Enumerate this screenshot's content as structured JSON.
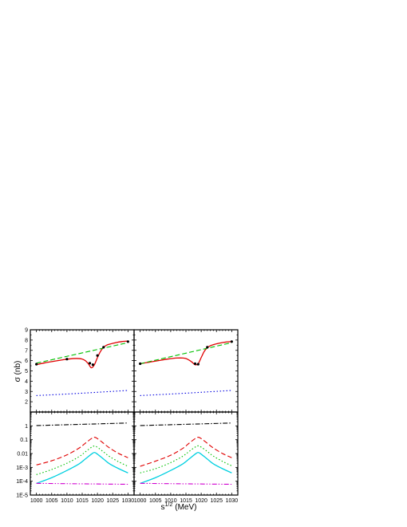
{
  "chart_data": [
    {
      "type": "line",
      "panel": "top-left",
      "ylabel": "σ (nb)",
      "ylim": [
        1,
        9
      ],
      "yticks": [
        2,
        3,
        4,
        5,
        6,
        7,
        8,
        9
      ],
      "xlim": [
        998,
        1032
      ],
      "series": [
        {
          "style": "solid",
          "color": "#e00000",
          "x": [
            1000,
            1003,
            1006,
            1009,
            1012,
            1014,
            1015,
            1016,
            1017,
            1018,
            1019,
            1020,
            1021,
            1022,
            1023,
            1024,
            1026,
            1028,
            1030
          ],
          "y": [
            5.6,
            5.8,
            5.95,
            6.1,
            6.2,
            6.2,
            6.15,
            6.0,
            5.7,
            5.3,
            5.6,
            6.3,
            6.9,
            7.3,
            7.5,
            7.6,
            7.75,
            7.85,
            7.9
          ]
        },
        {
          "style": "dashed",
          "color": "#00c000",
          "x": [
            1000,
            1030
          ],
          "y": [
            5.75,
            7.75
          ]
        },
        {
          "style": "dotted",
          "color": "#0000e0",
          "x": [
            1000,
            1010,
            1020,
            1030
          ],
          "y": [
            2.6,
            2.75,
            2.92,
            3.1
          ]
        },
        {
          "style": "points",
          "color": "#000000",
          "x": [
            1000,
            1010,
            1017.5,
            1018.5,
            1020,
            1022,
            1030
          ],
          "y": [
            5.65,
            6.15,
            5.75,
            5.6,
            6.5,
            7.3,
            7.85
          ]
        }
      ]
    },
    {
      "type": "line",
      "panel": "top-right",
      "ylim": [
        1,
        9
      ],
      "xlim": [
        998,
        1032
      ],
      "series": [
        {
          "style": "solid",
          "color": "#e00000",
          "x": [
            1000,
            1003,
            1006,
            1009,
            1012,
            1014,
            1015,
            1016,
            1017,
            1018,
            1019,
            1020,
            1021,
            1022,
            1023,
            1024,
            1026,
            1028,
            1030
          ],
          "y": [
            5.7,
            5.85,
            6.0,
            6.15,
            6.25,
            6.25,
            6.2,
            6.05,
            5.85,
            5.6,
            5.7,
            6.3,
            6.9,
            7.25,
            7.45,
            7.55,
            7.7,
            7.8,
            7.85
          ]
        },
        {
          "style": "dashed",
          "color": "#00c000",
          "x": [
            1000,
            1030
          ],
          "y": [
            5.7,
            7.75
          ]
        },
        {
          "style": "dotted",
          "color": "#0000e0",
          "x": [
            1000,
            1010,
            1020,
            1030
          ],
          "y": [
            2.6,
            2.75,
            2.92,
            3.1
          ]
        },
        {
          "style": "points",
          "color": "#000000",
          "x": [
            1000,
            1018,
            1019,
            1022,
            1030
          ],
          "y": [
            5.7,
            5.7,
            5.65,
            7.3,
            7.85
          ]
        }
      ]
    },
    {
      "type": "line",
      "panel": "bottom-left",
      "yscale": "log",
      "ylim": [
        1e-05,
        10
      ],
      "ytick_labels": [
        "1E-5",
        "1E-4",
        "1E-3",
        "0.01",
        "0.1",
        "1"
      ],
      "yticks": [
        1e-05,
        0.0001,
        0.001,
        0.01,
        0.1,
        1
      ],
      "xlim": [
        998,
        1032
      ],
      "xticks": [
        1000,
        1005,
        1010,
        1015,
        1020,
        1025,
        1030
      ],
      "series": [
        {
          "style": "dashdot",
          "color": "#000000",
          "x": [
            1000,
            1030
          ],
          "y": [
            1.05,
            1.6
          ]
        },
        {
          "style": "dashed",
          "color": "#e00000",
          "x": [
            1000,
            1005,
            1010,
            1014,
            1016,
            1018,
            1019,
            1020,
            1022,
            1024,
            1027,
            1030
          ],
          "y": [
            0.0015,
            0.003,
            0.008,
            0.025,
            0.055,
            0.12,
            0.15,
            0.12,
            0.055,
            0.025,
            0.01,
            0.005
          ]
        },
        {
          "style": "dotted",
          "color": "#00c000",
          "x": [
            1000,
            1005,
            1010,
            1014,
            1016,
            1018,
            1019,
            1020,
            1022,
            1024,
            1027,
            1030
          ],
          "y": [
            0.0003,
            0.0007,
            0.002,
            0.006,
            0.013,
            0.028,
            0.035,
            0.028,
            0.013,
            0.006,
            0.0025,
            0.0012
          ]
        },
        {
          "style": "solid",
          "color": "#00d0e0",
          "x": [
            1000,
            1005,
            1010,
            1014,
            1016,
            1018,
            1019,
            1020,
            1022,
            1024,
            1027,
            1030
          ],
          "y": [
            7e-05,
            0.00018,
            0.0006,
            0.0018,
            0.004,
            0.009,
            0.012,
            0.009,
            0.004,
            0.0018,
            0.0008,
            0.0004
          ]
        },
        {
          "style": "dashdotdot",
          "color": "#d000d0",
          "x": [
            1000,
            1030
          ],
          "y": [
            7e-05,
            6e-05
          ]
        }
      ]
    },
    {
      "type": "line",
      "panel": "bottom-right",
      "yscale": "log",
      "ylim": [
        1e-05,
        10
      ],
      "xlim": [
        998,
        1032
      ],
      "xticks": [
        1000,
        1005,
        1010,
        1015,
        1020,
        1025,
        1030
      ],
      "series": [
        {
          "style": "dashdot",
          "color": "#000000",
          "x": [
            1000,
            1030
          ],
          "y": [
            1.05,
            1.6
          ]
        },
        {
          "style": "dashed",
          "color": "#e00000",
          "x": [
            1000,
            1005,
            1010,
            1014,
            1016,
            1018,
            1019,
            1020,
            1022,
            1024,
            1027,
            1030
          ],
          "y": [
            0.0012,
            0.0028,
            0.0075,
            0.024,
            0.055,
            0.12,
            0.15,
            0.12,
            0.055,
            0.025,
            0.01,
            0.005
          ]
        },
        {
          "style": "dotted",
          "color": "#00c000",
          "x": [
            1000,
            1005,
            1010,
            1014,
            1016,
            1018,
            1019,
            1020,
            1022,
            1024,
            1027,
            1030
          ],
          "y": [
            0.0004,
            0.0008,
            0.0022,
            0.0065,
            0.014,
            0.029,
            0.036,
            0.029,
            0.014,
            0.0065,
            0.0027,
            0.0013
          ]
        },
        {
          "style": "solid",
          "color": "#00d0e0",
          "x": [
            1000,
            1005,
            1010,
            1014,
            1016,
            1018,
            1019,
            1020,
            1022,
            1024,
            1027,
            1030
          ],
          "y": [
            7e-05,
            0.00018,
            0.0006,
            0.0018,
            0.004,
            0.009,
            0.012,
            0.009,
            0.004,
            0.0018,
            0.0008,
            0.0004
          ]
        },
        {
          "style": "dashdotdot",
          "color": "#d000d0",
          "x": [
            1000,
            1030
          ],
          "y": [
            7e-05,
            6e-05
          ]
        }
      ]
    }
  ],
  "xlabel": "s",
  "xlabel_superscript": "1/2",
  "xlabel_unit": "(MeV)"
}
